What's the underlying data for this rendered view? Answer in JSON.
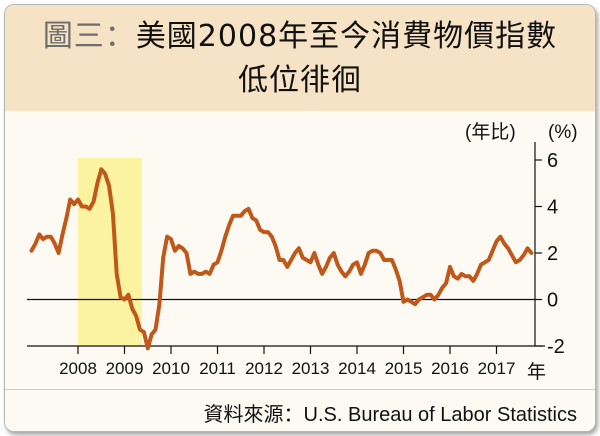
{
  "title_line1_prefix": "圖三：",
  "title_line1_main": "美國2008年至今消費物價指數",
  "title_line2": "低位徘徊",
  "source": "資料來源：U.S. Bureau of Labor Statistics",
  "chart_data": {
    "type": "line",
    "title": "美國2008年至今消費物價指數低位徘徊",
    "ylabel": "(%)",
    "ylabel_note": "(年比)",
    "xlabel": "年",
    "ylim": [
      -2,
      6
    ],
    "yticks": [
      6,
      4,
      2,
      0,
      -2
    ],
    "xticks": [
      "2008",
      "2009",
      "2010",
      "2011",
      "2012",
      "2013",
      "2014",
      "2015",
      "2016",
      "2017"
    ],
    "highlight_range": [
      "2008",
      "2009 Q2"
    ],
    "line_color": "#c0581a",
    "highlight_color": "#fbf3a0",
    "series": [
      {
        "x": [
          "2007-01",
          "2007-02",
          "2007-03",
          "2007-04",
          "2007-05",
          "2007-06",
          "2007-07",
          "2007-08",
          "2007-09",
          "2007-10",
          "2007-11",
          "2007-12",
          "2008-01",
          "2008-02",
          "2008-03",
          "2008-04",
          "2008-05",
          "2008-06",
          "2008-07",
          "2008-08",
          "2008-09",
          "2008-10",
          "2008-11",
          "2008-12",
          "2009-01",
          "2009-02",
          "2009-03",
          "2009-04",
          "2009-05",
          "2009-06",
          "2009-07",
          "2009-08",
          "2009-09",
          "2009-10",
          "2009-11",
          "2009-12",
          "2010-01",
          "2010-02",
          "2010-03",
          "2010-04",
          "2010-05",
          "2010-06",
          "2010-07",
          "2010-08",
          "2010-09",
          "2010-10",
          "2010-11",
          "2010-12",
          "2011-01",
          "2011-02",
          "2011-03",
          "2011-04",
          "2011-05",
          "2011-06",
          "2011-07",
          "2011-08",
          "2011-09",
          "2011-10",
          "2011-11",
          "2011-12",
          "2012-01",
          "2012-02",
          "2012-03",
          "2012-04",
          "2012-05",
          "2012-06",
          "2012-07",
          "2012-08",
          "2012-09",
          "2012-10",
          "2012-11",
          "2012-12",
          "2013-01",
          "2013-02",
          "2013-03",
          "2013-04",
          "2013-05",
          "2013-06",
          "2013-07",
          "2013-08",
          "2013-09",
          "2013-10",
          "2013-11",
          "2013-12",
          "2014-01",
          "2014-02",
          "2014-03",
          "2014-04",
          "2014-05",
          "2014-06",
          "2014-07",
          "2014-08",
          "2014-09",
          "2014-10",
          "2014-11",
          "2014-12",
          "2015-01",
          "2015-02",
          "2015-03",
          "2015-04",
          "2015-05",
          "2015-06",
          "2015-07",
          "2015-08",
          "2015-09",
          "2015-10",
          "2015-11",
          "2015-12",
          "2016-01",
          "2016-02",
          "2016-03",
          "2016-04",
          "2016-05",
          "2016-06",
          "2016-07",
          "2016-08",
          "2016-09",
          "2016-10",
          "2016-11",
          "2016-12",
          "2017-01",
          "2017-02",
          "2017-03",
          "2017-04",
          "2017-05",
          "2017-06",
          "2017-07",
          "2017-08",
          "2017-09",
          "2017-10"
        ],
        "values": [
          2.1,
          2.4,
          2.8,
          2.6,
          2.7,
          2.7,
          2.4,
          2.0,
          2.8,
          3.5,
          4.3,
          4.1,
          4.3,
          4.0,
          4.0,
          3.9,
          4.2,
          5.0,
          5.6,
          5.4,
          4.9,
          3.7,
          1.1,
          0.1,
          0.0,
          0.2,
          -0.4,
          -0.7,
          -1.3,
          -1.4,
          -2.1,
          -1.5,
          -1.3,
          -0.2,
          1.8,
          2.7,
          2.6,
          2.1,
          2.3,
          2.2,
          2.0,
          1.1,
          1.2,
          1.1,
          1.1,
          1.2,
          1.1,
          1.5,
          1.6,
          2.1,
          2.7,
          3.2,
          3.6,
          3.6,
          3.6,
          3.8,
          3.9,
          3.5,
          3.4,
          3.0,
          2.9,
          2.9,
          2.7,
          2.3,
          1.7,
          1.7,
          1.4,
          1.7,
          2.0,
          2.2,
          1.8,
          1.7,
          1.6,
          2.0,
          1.5,
          1.1,
          1.4,
          1.8,
          2.0,
          1.5,
          1.2,
          1.0,
          1.2,
          1.5,
          1.6,
          1.1,
          1.5,
          2.0,
          2.1,
          2.1,
          2.0,
          1.7,
          1.7,
          1.7,
          1.3,
          0.8,
          -0.1,
          0.0,
          -0.1,
          -0.2,
          0.0,
          0.1,
          0.2,
          0.2,
          0.0,
          0.2,
          0.5,
          0.7,
          1.4,
          1.0,
          0.9,
          1.1,
          1.0,
          1.0,
          0.8,
          1.1,
          1.5,
          1.6,
          1.7,
          2.1,
          2.5,
          2.7,
          2.4,
          2.2,
          1.9,
          1.6,
          1.7,
          1.9,
          2.2,
          2.0
        ]
      }
    ]
  }
}
